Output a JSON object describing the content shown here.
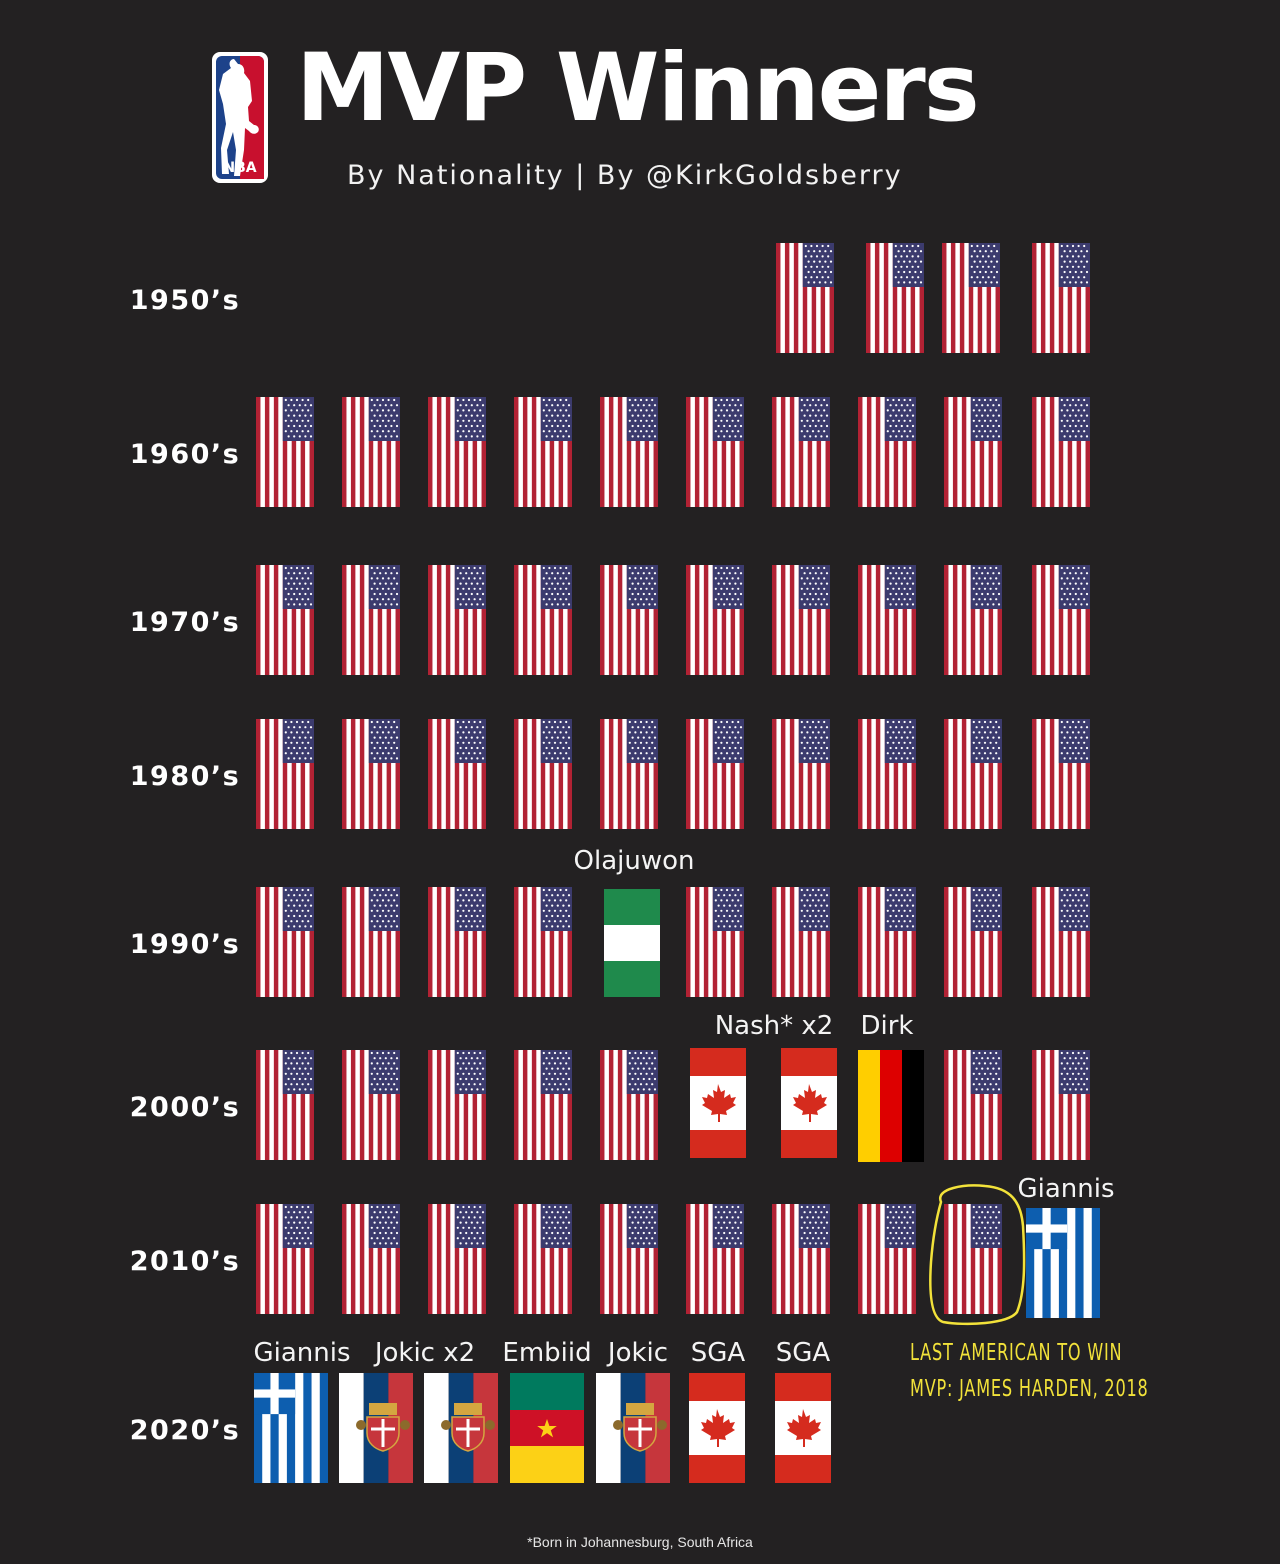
{
  "header": {
    "title": "MVP Winners",
    "subtitle": "By Nationality | By @KirkGoldsberry",
    "logo_text": "NBA"
  },
  "colors": {
    "background": "#232122",
    "usa_red": "#b22234",
    "usa_blue": "#3c3b6e",
    "nigeria_green": "#1f8a4c",
    "canada_red": "#d52b1e",
    "germany_gold": "#ffce00",
    "germany_red": "#dd0000",
    "germany_black": "#000000",
    "greece_blue": "#0d5eaf",
    "serbia_red": "#c6363c",
    "serbia_blue": "#0c4076",
    "cameroon_green": "#007a5e",
    "cameroon_red": "#ce1126",
    "cameroon_yellow": "#fcd116",
    "annotation": "#f2e23a"
  },
  "decades": [
    {
      "label": "1950’s",
      "flags": [
        "usa",
        "usa",
        "usa",
        "usa"
      ]
    },
    {
      "label": "1960’s",
      "flags": [
        "usa",
        "usa",
        "usa",
        "usa",
        "usa",
        "usa",
        "usa",
        "usa",
        "usa",
        "usa"
      ]
    },
    {
      "label": "1970’s",
      "flags": [
        "usa",
        "usa",
        "usa",
        "usa",
        "usa",
        "usa",
        "usa",
        "usa",
        "usa",
        "usa"
      ]
    },
    {
      "label": "1980’s",
      "flags": [
        "usa",
        "usa",
        "usa",
        "usa",
        "usa",
        "usa",
        "usa",
        "usa",
        "usa",
        "usa"
      ]
    },
    {
      "label": "1990’s",
      "flags": [
        "usa",
        "usa",
        "usa",
        "usa",
        "nigeria",
        "usa",
        "usa",
        "usa",
        "usa",
        "usa"
      ]
    },
    {
      "label": "2000’s",
      "flags": [
        "usa",
        "usa",
        "usa",
        "usa",
        "usa",
        "canada",
        "canada",
        "germany",
        "usa",
        "usa"
      ]
    },
    {
      "label": "2010’s",
      "flags": [
        "usa",
        "usa",
        "usa",
        "usa",
        "usa",
        "usa",
        "usa",
        "usa",
        "usa",
        "greece"
      ]
    },
    {
      "label": "2020’s",
      "flags": [
        "greece",
        "serbia",
        "serbia",
        "cameroon",
        "serbia",
        "canada",
        "canada"
      ]
    }
  ],
  "player_labels": {
    "olajuwon": "Olajuwon",
    "nash": "Nash* x2",
    "dirk": "Dirk",
    "giannis_2010s": "Giannis",
    "giannis_2020s": "Giannis",
    "jokic_x2": "Jokic x2",
    "embiid": "Embiid",
    "jokic": "Jokic",
    "sga_1": "SGA",
    "sga_2": "SGA"
  },
  "annotation": {
    "line1": "LAST AMERICAN TO WIN",
    "line2": "MVP: JAMES HARDEN, 2018"
  },
  "footnote": "*Born in Johannesburg, South Africa"
}
